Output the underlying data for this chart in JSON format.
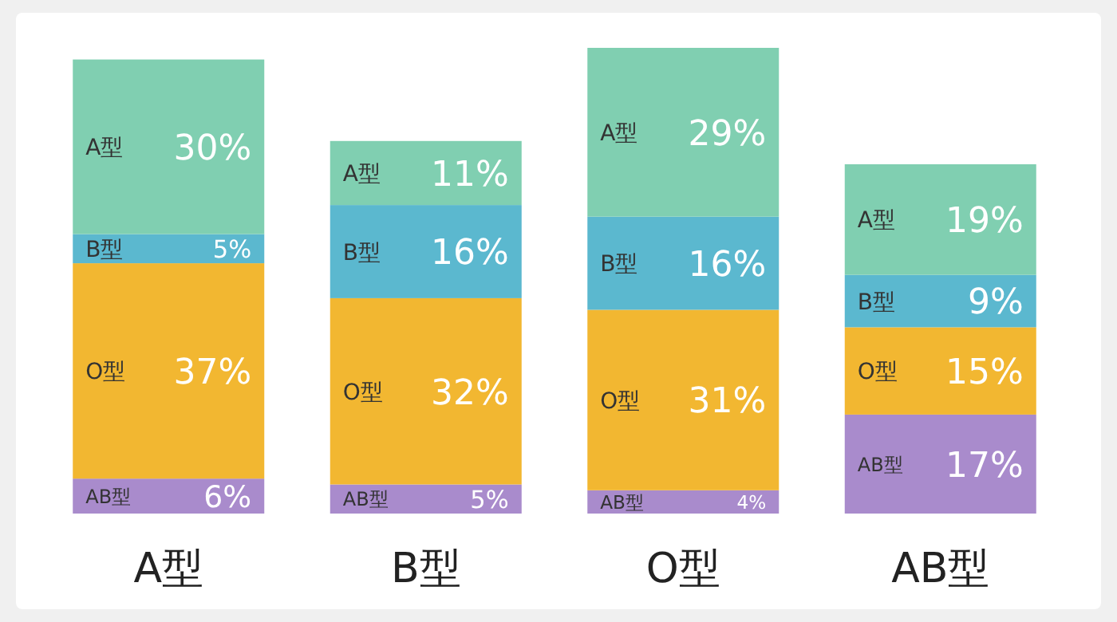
{
  "chart_data": {
    "type": "bar",
    "stacked": true,
    "categories": [
      "A型",
      "B型",
      "O型",
      "AB型"
    ],
    "series": [
      {
        "name": "AB型",
        "color": "#a98bcc",
        "values": [
          6,
          5,
          4,
          17
        ],
        "value_labels": [
          "6%",
          "5%",
          "4%",
          "17%"
        ]
      },
      {
        "name": "O型",
        "color": "#f2b731",
        "values": [
          37,
          32,
          31,
          15
        ],
        "value_labels": [
          "37%",
          "32%",
          "31%",
          "15%"
        ]
      },
      {
        "name": "B型",
        "color": "#5bb8cf",
        "values": [
          5,
          16,
          16,
          9
        ],
        "value_labels": [
          "5%",
          "16%",
          "16%",
          "9%"
        ]
      },
      {
        "name": "A型",
        "color": "#80cfb1",
        "values": [
          30,
          11,
          29,
          19
        ],
        "value_labels": [
          "30%",
          "11%",
          "29%",
          "19%"
        ]
      }
    ]
  }
}
